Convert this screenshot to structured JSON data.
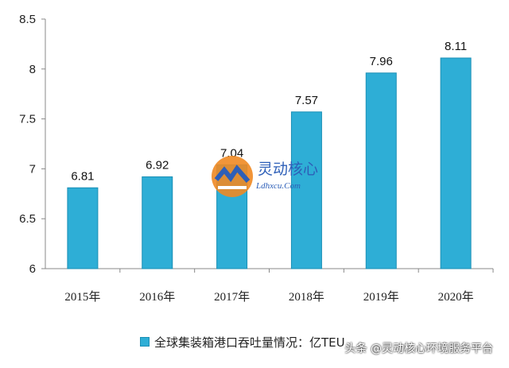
{
  "chart_data": {
    "type": "bar",
    "categories": [
      "2015年",
      "2016年",
      "2017年",
      "2018年",
      "2019年",
      "2020年"
    ],
    "series": [
      {
        "name": "全球集装箱港口吞吐量情况：亿TEU",
        "values": [
          6.81,
          6.92,
          7.04,
          7.57,
          7.96,
          8.11
        ],
        "labels": [
          "6.81",
          "6.92",
          "7.04",
          "7.57",
          "7.96",
          "8.11"
        ]
      }
    ],
    "ylim": [
      6,
      8.5
    ],
    "yticks": [
      6,
      6.5,
      7,
      7.5,
      8,
      8.5
    ],
    "ytick_labels": [
      "6",
      "6.5",
      "7",
      "7.5",
      "8",
      "8.5"
    ],
    "grid": false,
    "legend_placement": "bottom",
    "bar_color": "#2eaed6",
    "bar_edge_color": "#1b8fb5"
  },
  "watermark": {
    "title": "灵动核心",
    "url": "Ldhxcu.Com",
    "icon": "logo-icon"
  },
  "footer": {
    "credit": "头条 @灵动核心环境服务平台"
  }
}
